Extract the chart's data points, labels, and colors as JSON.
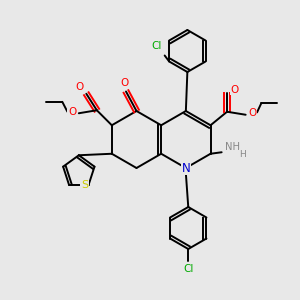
{
  "bg_color": "#e8e8e8",
  "bond_color": "#000000",
  "atom_colors": {
    "O": "#ff0000",
    "N": "#0000cd",
    "S": "#cccc00",
    "Cl": "#00aa00",
    "H": "#888888",
    "C": "#000000"
  },
  "figsize": [
    3.0,
    3.0
  ],
  "dpi": 100
}
